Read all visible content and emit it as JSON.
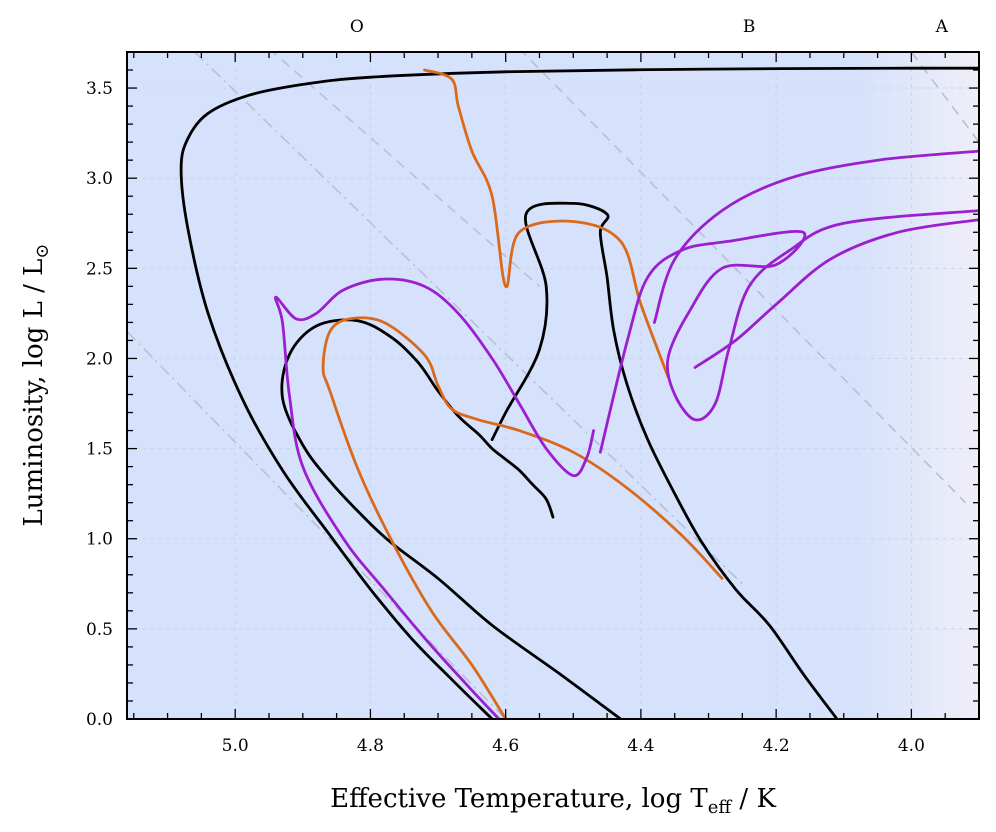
{
  "chart_data": {
    "type": "line",
    "title": "",
    "xlabel": "Effective Temperature, log T",
    "xlabel_sub": "eff",
    "xlabel_unit": " / K",
    "ylabel": "Luminosity, log L / L",
    "ylabel_sub": "⊙",
    "xlim": [
      5.16,
      3.9
    ],
    "ylim": [
      0.0,
      3.7
    ],
    "x_ticks": [
      5.0,
      4.8,
      4.6,
      4.4,
      4.2,
      4.0
    ],
    "x_tick_labels": [
      "5.0",
      "4.8",
      "4.6",
      "4.4",
      "4.2",
      "4.0"
    ],
    "y_ticks": [
      0.0,
      0.5,
      1.0,
      1.5,
      2.0,
      2.5,
      3.0,
      3.5
    ],
    "y_tick_labels": [
      "0.0",
      "0.5",
      "1.0",
      "1.5",
      "2.0",
      "2.5",
      "3.0",
      "3.5"
    ],
    "spectral_classes": [
      {
        "label": "O",
        "logT": 4.82
      },
      {
        "label": "B",
        "logT": 4.24
      },
      {
        "label": "A",
        "logT": 3.955
      }
    ],
    "background": {
      "main": "#d6e2fb",
      "cool_edge": "#efeef8"
    },
    "reference_lines": [
      {
        "name": "dashdot-left",
        "points": [
          [
            5.16,
            2.15
          ],
          [
            4.6,
            0.0
          ]
        ]
      },
      {
        "name": "dashdot-mid",
        "points": [
          [
            5.06,
            3.7
          ],
          [
            4.25,
            0.75
          ]
        ]
      },
      {
        "name": "dashed-upper",
        "points": [
          [
            4.95,
            3.72
          ],
          [
            4.55,
            2.4
          ]
        ]
      },
      {
        "name": "dashed-right",
        "points": [
          [
            4.58,
            3.72
          ],
          [
            3.92,
            1.2
          ]
        ]
      },
      {
        "name": "dashed-far",
        "points": [
          [
            4.0,
            3.7
          ],
          [
            3.9,
            3.2
          ]
        ]
      }
    ],
    "series": [
      {
        "name": "black-track-1",
        "color": "#000000",
        "points": [
          [
            4.62,
            0.0
          ],
          [
            4.68,
            0.22
          ],
          [
            4.74,
            0.45
          ],
          [
            4.8,
            0.72
          ],
          [
            4.86,
            1.02
          ],
          [
            4.93,
            1.38
          ],
          [
            4.99,
            1.78
          ],
          [
            5.04,
            2.25
          ],
          [
            5.07,
            2.72
          ],
          [
            5.08,
            3.05
          ],
          [
            5.07,
            3.22
          ],
          [
            5.04,
            3.36
          ],
          [
            4.98,
            3.46
          ],
          [
            4.9,
            3.52
          ],
          [
            4.8,
            3.56
          ],
          [
            4.6,
            3.59
          ],
          [
            4.3,
            3.605
          ],
          [
            4.0,
            3.61
          ],
          [
            3.9,
            3.61
          ]
        ]
      },
      {
        "name": "black-track-2",
        "color": "#000000",
        "points": [
          [
            4.43,
            0.0
          ],
          [
            4.52,
            0.25
          ],
          [
            4.62,
            0.52
          ],
          [
            4.7,
            0.78
          ],
          [
            4.77,
            0.98
          ],
          [
            4.81,
            1.12
          ],
          [
            4.86,
            1.32
          ],
          [
            4.9,
            1.52
          ],
          [
            4.93,
            1.78
          ],
          [
            4.92,
            2.02
          ],
          [
            4.88,
            2.18
          ],
          [
            4.82,
            2.21
          ],
          [
            4.77,
            2.12
          ],
          [
            4.73,
            1.98
          ],
          [
            4.7,
            1.82
          ],
          [
            4.67,
            1.68
          ],
          [
            4.64,
            1.58
          ],
          [
            4.62,
            1.5
          ],
          [
            4.6,
            1.44
          ],
          [
            4.58,
            1.38
          ],
          [
            4.56,
            1.3
          ],
          [
            4.54,
            1.22
          ],
          [
            4.53,
            1.12
          ]
        ]
      },
      {
        "name": "black-track-3",
        "color": "#000000",
        "points": [
          [
            4.11,
            0.0
          ],
          [
            4.16,
            0.25
          ],
          [
            4.21,
            0.52
          ],
          [
            4.26,
            0.72
          ],
          [
            4.31,
            0.98
          ],
          [
            4.35,
            1.25
          ],
          [
            4.39,
            1.55
          ],
          [
            4.42,
            1.85
          ],
          [
            4.44,
            2.15
          ],
          [
            4.45,
            2.45
          ],
          [
            4.46,
            2.7
          ],
          [
            4.45,
            2.8
          ],
          [
            4.5,
            2.86
          ],
          [
            4.57,
            2.8
          ],
          [
            4.54,
            2.4
          ],
          [
            4.55,
            2.05
          ],
          [
            4.6,
            1.7
          ],
          [
            4.62,
            1.55
          ]
        ]
      },
      {
        "name": "orange-track",
        "color": "#d96a1c",
        "points": [
          [
            4.28,
            0.78
          ],
          [
            4.34,
            1.02
          ],
          [
            4.42,
            1.28
          ],
          [
            4.5,
            1.48
          ],
          [
            4.58,
            1.6
          ],
          [
            4.64,
            1.66
          ],
          [
            4.68,
            1.72
          ],
          [
            4.7,
            1.85
          ],
          [
            4.72,
            2.02
          ],
          [
            4.78,
            2.2
          ],
          [
            4.83,
            2.22
          ],
          [
            4.86,
            2.15
          ],
          [
            4.87,
            1.95
          ],
          [
            4.86,
            1.82
          ],
          [
            4.82,
            1.4
          ],
          [
            4.77,
            1.0
          ],
          [
            4.71,
            0.6
          ],
          [
            4.65,
            0.3
          ],
          [
            4.6,
            0.0
          ]
        ]
      },
      {
        "name": "orange-track-upper",
        "color": "#d96a1c",
        "points": [
          [
            4.36,
            1.9
          ],
          [
            4.4,
            2.3
          ],
          [
            4.43,
            2.65
          ],
          [
            4.5,
            2.76
          ],
          [
            4.58,
            2.7
          ],
          [
            4.6,
            2.4
          ],
          [
            4.62,
            2.9
          ],
          [
            4.65,
            3.15
          ],
          [
            4.67,
            3.4
          ],
          [
            4.68,
            3.55
          ],
          [
            4.72,
            3.6
          ]
        ]
      },
      {
        "name": "purple-track-1",
        "color": "#9b1fcf",
        "points": [
          [
            4.61,
            0.0
          ],
          [
            4.66,
            0.2
          ],
          [
            4.72,
            0.45
          ],
          [
            4.78,
            0.72
          ],
          [
            4.84,
            1.0
          ],
          [
            4.9,
            1.4
          ],
          [
            4.92,
            1.8
          ],
          [
            4.93,
            2.2
          ],
          [
            4.94,
            2.34
          ],
          [
            4.91,
            2.22
          ],
          [
            4.88,
            2.25
          ],
          [
            4.84,
            2.38
          ],
          [
            4.78,
            2.44
          ],
          [
            4.72,
            2.4
          ],
          [
            4.67,
            2.25
          ],
          [
            4.62,
            2.0
          ],
          [
            4.58,
            1.75
          ],
          [
            4.54,
            1.5
          ],
          [
            4.5,
            1.35
          ],
          [
            4.48,
            1.45
          ],
          [
            4.47,
            1.6
          ]
        ]
      },
      {
        "name": "purple-track-2",
        "color": "#9b1fcf",
        "points": [
          [
            4.46,
            1.48
          ],
          [
            4.42,
            2.1
          ],
          [
            4.39,
            2.45
          ],
          [
            4.34,
            2.6
          ],
          [
            4.27,
            2.65
          ],
          [
            4.16,
            2.7
          ],
          [
            4.2,
            2.52
          ],
          [
            4.28,
            2.5
          ],
          [
            4.33,
            2.25
          ],
          [
            4.36,
            2.0
          ],
          [
            4.35,
            1.8
          ],
          [
            4.32,
            1.66
          ],
          [
            4.29,
            1.75
          ],
          [
            4.27,
            2.05
          ],
          [
            4.24,
            2.4
          ],
          [
            4.18,
            2.6
          ],
          [
            4.1,
            2.75
          ],
          [
            3.9,
            2.82
          ]
        ]
      },
      {
        "name": "purple-track-3",
        "color": "#9b1fcf",
        "points": [
          [
            4.38,
            2.2
          ],
          [
            4.35,
            2.55
          ],
          [
            4.28,
            2.82
          ],
          [
            4.18,
            3.0
          ],
          [
            4.05,
            3.1
          ],
          [
            3.9,
            3.15
          ]
        ]
      },
      {
        "name": "purple-track-4",
        "color": "#9b1fcf",
        "points": [
          [
            4.32,
            1.95
          ],
          [
            4.26,
            2.1
          ],
          [
            4.2,
            2.3
          ],
          [
            4.12,
            2.55
          ],
          [
            4.02,
            2.7
          ],
          [
            3.9,
            2.77
          ]
        ]
      }
    ]
  }
}
